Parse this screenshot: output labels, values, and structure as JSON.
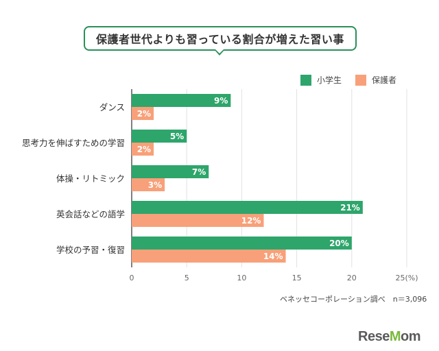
{
  "title": "保護者世代よりも習っている割合が増えた習い事",
  "legend": {
    "elementary": "小学生",
    "guardian": "保護者"
  },
  "colors": {
    "elementary": "#2ea56b",
    "guardian": "#f8a079",
    "title_border": "#2a8f5a"
  },
  "source_note": "ベネッセコーポレーション調べ　n＝3,096",
  "logo": {
    "main": "ReseMom",
    "accent_letter": "M"
  },
  "chart_data": {
    "type": "bar",
    "orientation": "horizontal",
    "categories": [
      "ダンス",
      "思考力を伸ばすための学習",
      "体操・リトミック",
      "英会話などの語学",
      "学校の予習・復習"
    ],
    "series": [
      {
        "name": "小学生",
        "values": [
          9,
          5,
          7,
          21,
          20
        ],
        "labels": [
          "9%",
          "5%",
          "7%",
          "21%",
          "20%"
        ]
      },
      {
        "name": "保護者",
        "values": [
          2,
          2,
          3,
          12,
          14
        ],
        "labels": [
          "2%",
          "2%",
          "3%",
          "12%",
          "14%"
        ]
      }
    ],
    "xlim": [
      0,
      25
    ],
    "xticks": [
      0,
      5,
      10,
      15,
      20,
      25
    ],
    "xtick_labels": [
      "0",
      "5",
      "10",
      "15",
      "20",
      "25(%)"
    ],
    "grid": true,
    "legend_position": "top-right"
  }
}
